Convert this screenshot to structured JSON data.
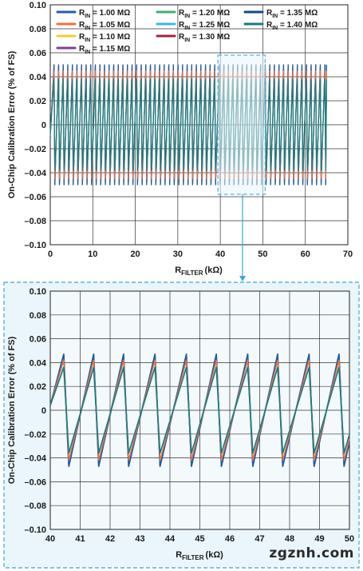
{
  "chart_data": [
    {
      "type": "line",
      "title": "",
      "xlabel": "R",
      "xlabel_sub": "FILTER",
      "xlabel_unit": "(kΩ)",
      "ylabel": "On-Chip Calibration Error (% of FS)",
      "xlim": [
        0,
        70
      ],
      "ylim": [
        -0.1,
        0.1
      ],
      "xticks": [
        "0",
        "10",
        "20",
        "30",
        "40",
        "50",
        "60",
        "70"
      ],
      "yticks": [
        "0.10",
        "0.08",
        "0.06",
        "0.04",
        "0.02",
        "0",
        "–0.02",
        "–0.04",
        "–0.06",
        "–0.08",
        "–0.10"
      ],
      "grid": true,
      "legend_position": "top-left",
      "legend": [
        {
          "prefix": "R",
          "sub": "IN",
          "label": " = 1.00 MΩ",
          "color": "#1f5fa8"
        },
        {
          "prefix": "R",
          "sub": "IN",
          "label": " = 1.05 MΩ",
          "color": "#f36f3c"
        },
        {
          "prefix": "R",
          "sub": "IN",
          "label": " = 1.10 MΩ",
          "color": "#f9c93a"
        },
        {
          "prefix": "R",
          "sub": "IN",
          "label": " = 1.15 MΩ",
          "color": "#7b3f9e"
        },
        {
          "prefix": "R",
          "sub": "IN",
          "label": " = 1.20 MΩ",
          "color": "#3cb371"
        },
        {
          "prefix": "R",
          "sub": "IN",
          "label": " = 1.25 MΩ",
          "color": "#38b8e8"
        },
        {
          "prefix": "R",
          "sub": "IN",
          "label": " = 1.30 MΩ",
          "color": "#a3233a"
        },
        {
          "prefix": "R",
          "sub": "IN",
          "label": " = 1.35 MΩ",
          "color": "#0a4d8c"
        },
        {
          "prefix": "R",
          "sub": "IN",
          "label": " = 1.40 MΩ",
          "color": "#1a7a7a"
        }
      ],
      "sawtooth": {
        "x_start": 0,
        "x_end": 65,
        "period_kohm": 1.08,
        "amplitudes": {
          "outer": 0.05,
          "mid": 0.045,
          "inner": 0.038
        }
      },
      "zoom_box": {
        "x": [
          40,
          50
        ],
        "y": [
          -0.058,
          0.058
        ]
      }
    },
    {
      "type": "line",
      "title": "",
      "xlabel": "R",
      "xlabel_sub": "FILTER",
      "xlabel_unit": "(kΩ)",
      "ylabel": "On-Chip Calibration Error (% of FS)",
      "xlim": [
        40,
        50
      ],
      "ylim": [
        -0.1,
        0.1
      ],
      "xticks": [
        "40",
        "41",
        "42",
        "43",
        "44",
        "45",
        "46",
        "47",
        "48",
        "49",
        "50"
      ],
      "yticks": [
        "0.10",
        "0.08",
        "0.06",
        "0.04",
        "0.02",
        "0",
        "–0.02",
        "–0.04",
        "–0.06",
        "–0.08",
        "–0.10"
      ],
      "grid": true,
      "sawtooth": {
        "x_start": 40,
        "x_end": 50,
        "peaks_x": [
          40.45,
          41.45,
          42.45,
          43.5,
          44.55,
          45.55,
          46.6,
          47.6,
          48.65,
          49.65
        ],
        "amplitudes": {
          "outer": 0.047,
          "mid": 0.042,
          "inner": 0.036
        }
      }
    }
  ],
  "watermark": "zgznh.com",
  "colors": {
    "zoom_border": "#5ab4dc",
    "zoom_bg": "#eaf6fc",
    "arrow": "#38a8d8",
    "grid": "#333333"
  }
}
